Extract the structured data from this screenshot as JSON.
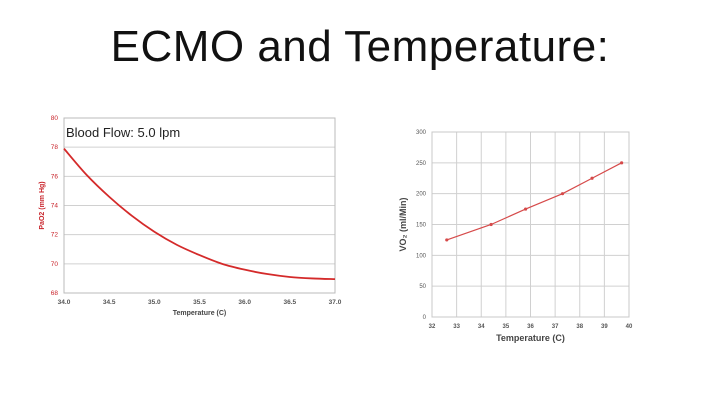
{
  "slide": {
    "title": "ECMO and Temperature:"
  },
  "colors": {
    "left_series": "#d42a2a",
    "left_axis": "#c8232a",
    "right_series": "#d64a4a",
    "grid": "#d0d0d0",
    "axis_text": "#555555"
  },
  "chart_data": [
    {
      "type": "line",
      "title": "",
      "annotation": "Blood Flow: 5.0 lpm",
      "xlabel": "Temperature (C)",
      "ylabel": "PaO2 (mm Hg)",
      "xlim": [
        34.0,
        37.0
      ],
      "ylim": [
        68,
        80
      ],
      "xticks": [
        "34.0",
        "34.5",
        "35.0",
        "35.5",
        "36.0",
        "36.5",
        "37.0"
      ],
      "yticks": [
        "68",
        "70",
        "72",
        "74",
        "76",
        "78",
        "80"
      ],
      "grid": true,
      "series": [
        {
          "name": "PaO2",
          "x": [
            34.0,
            34.25,
            34.5,
            34.75,
            35.0,
            35.25,
            35.5,
            35.75,
            36.0,
            36.25,
            36.5,
            36.75,
            37.0
          ],
          "y": [
            77.9,
            76.1,
            74.6,
            73.3,
            72.2,
            71.3,
            70.6,
            70.0,
            69.6,
            69.3,
            69.1,
            69.0,
            68.95
          ]
        }
      ]
    },
    {
      "type": "line",
      "title": "",
      "xlabel": "Temperature (C)",
      "ylabel": "VO₂ (ml/Min)",
      "xlim": [
        32,
        40
      ],
      "ylim": [
        0,
        300
      ],
      "xticks": [
        "32",
        "33",
        "34",
        "35",
        "36",
        "37",
        "38",
        "39",
        "40"
      ],
      "yticks": [
        "0",
        "50",
        "100",
        "150",
        "200",
        "250",
        "300"
      ],
      "grid": true,
      "series": [
        {
          "name": "VO2",
          "x": [
            32.6,
            34.4,
            35.8,
            37.3,
            38.5,
            39.7
          ],
          "y": [
            125,
            150,
            175,
            200,
            225,
            250
          ]
        }
      ]
    }
  ]
}
